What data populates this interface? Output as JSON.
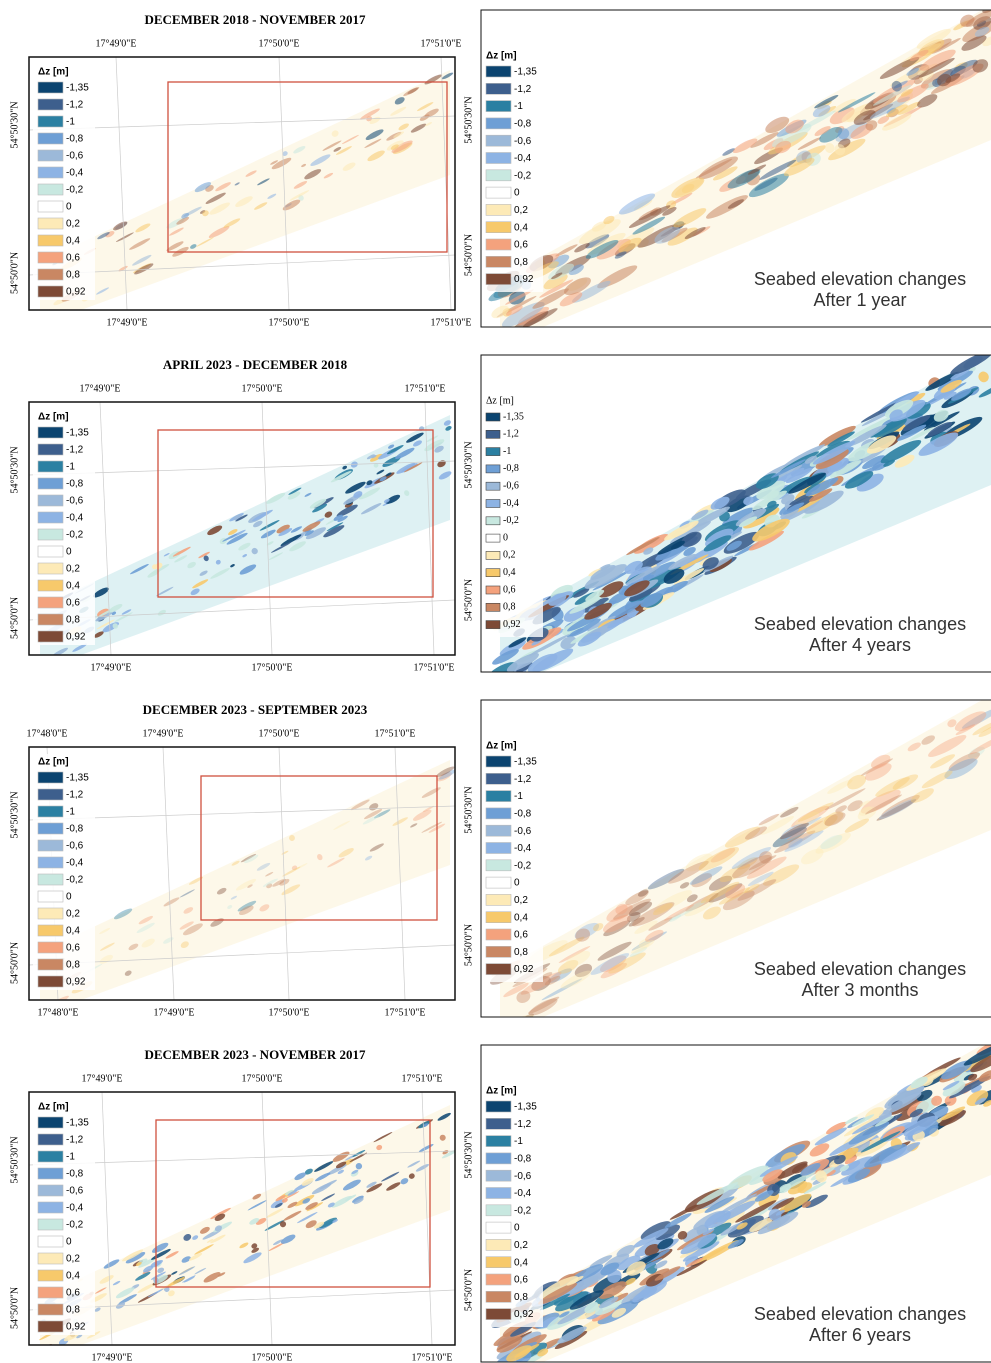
{
  "legend": {
    "title": "Δz [m]",
    "items": [
      {
        "label": "-1,35",
        "color": "#0b4470"
      },
      {
        "label": "-1,2",
        "color": "#3d5f8d"
      },
      {
        "label": "-1",
        "color": "#2b80a2"
      },
      {
        "label": "-0,8",
        "color": "#6e9fd5"
      },
      {
        "label": "-0,6",
        "color": "#9cb9d9"
      },
      {
        "label": "-0,4",
        "color": "#8db3e4"
      },
      {
        "label": "-0,2",
        "color": "#c8e8e0"
      },
      {
        "label": "0",
        "color": "#ffffff"
      },
      {
        "label": "0,2",
        "color": "#fdeab7"
      },
      {
        "label": "0,4",
        "color": "#f7c96b"
      },
      {
        "label": "0,6",
        "color": "#f4a27d"
      },
      {
        "label": "0,8",
        "color": "#c98763"
      },
      {
        "label": "0,92",
        "color": "#7d4a36"
      }
    ]
  },
  "panels": [
    {
      "title": "DECEMBER 2018 - NOVEMBER 2017",
      "top_lon": [
        "17°49'0\"E",
        "17°50'0\"E",
        "17°51'0\"E"
      ],
      "bottom_lon": [
        "17°49'0\"E",
        "17°50'0\"E",
        "17°51'0\"E"
      ],
      "lat": [
        "54°50'30\"N",
        "54°50'0\"N"
      ],
      "right_lat": [
        "54°50'30\"N",
        "54°50'0\"N"
      ],
      "caption": [
        "Seabed elevation changes",
        "After 1 year"
      ]
    },
    {
      "title": "APRIL 2023 - DECEMBER 2018",
      "top_lon": [
        "17°49'0\"E",
        "17°50'0\"E",
        "17°51'0\"E"
      ],
      "bottom_lon": [
        "17°49'0\"E",
        "17°50'0\"E",
        "17°51'0\"E"
      ],
      "lat": [
        "54°50'30\"N",
        "54°50'0\"N"
      ],
      "right_lat": [
        "54°50'30\"N",
        "54°50'0\"N"
      ],
      "caption": [
        "Seabed elevation changes",
        "After 4 years"
      ]
    },
    {
      "title": "DECEMBER 2023 - SEPTEMBER 2023",
      "top_lon": [
        "17°48'0\"E",
        "17°49'0\"E",
        "17°50'0\"E",
        "17°51'0\"E"
      ],
      "bottom_lon": [
        "17°48'0\"E",
        "17°49'0\"E",
        "17°50'0\"E",
        "17°51'0\"E"
      ],
      "lat": [
        "54°50'30\"N",
        "54°50'0\"N"
      ],
      "right_lat": [
        "54°50'30\"N",
        "54°50'0\"N"
      ],
      "caption": [
        "Seabed elevation changes",
        "After 3 months"
      ]
    },
    {
      "title": "DECEMBER 2023 - NOVEMBER 2017",
      "top_lon": [
        "17°49'0\"E",
        "17°50'0\"E",
        "17°51'0\"E"
      ],
      "bottom_lon": [
        "17°49'0\"E",
        "17°50'0\"E",
        "17°51'0\"E"
      ],
      "lat": [
        "54°50'30\"N",
        "54°50'0\"N"
      ],
      "right_lat": [
        "54°50'30\"N",
        "54°50'0\"N"
      ],
      "caption": [
        "Seabed elevation changes",
        "After 6 years"
      ]
    }
  ]
}
